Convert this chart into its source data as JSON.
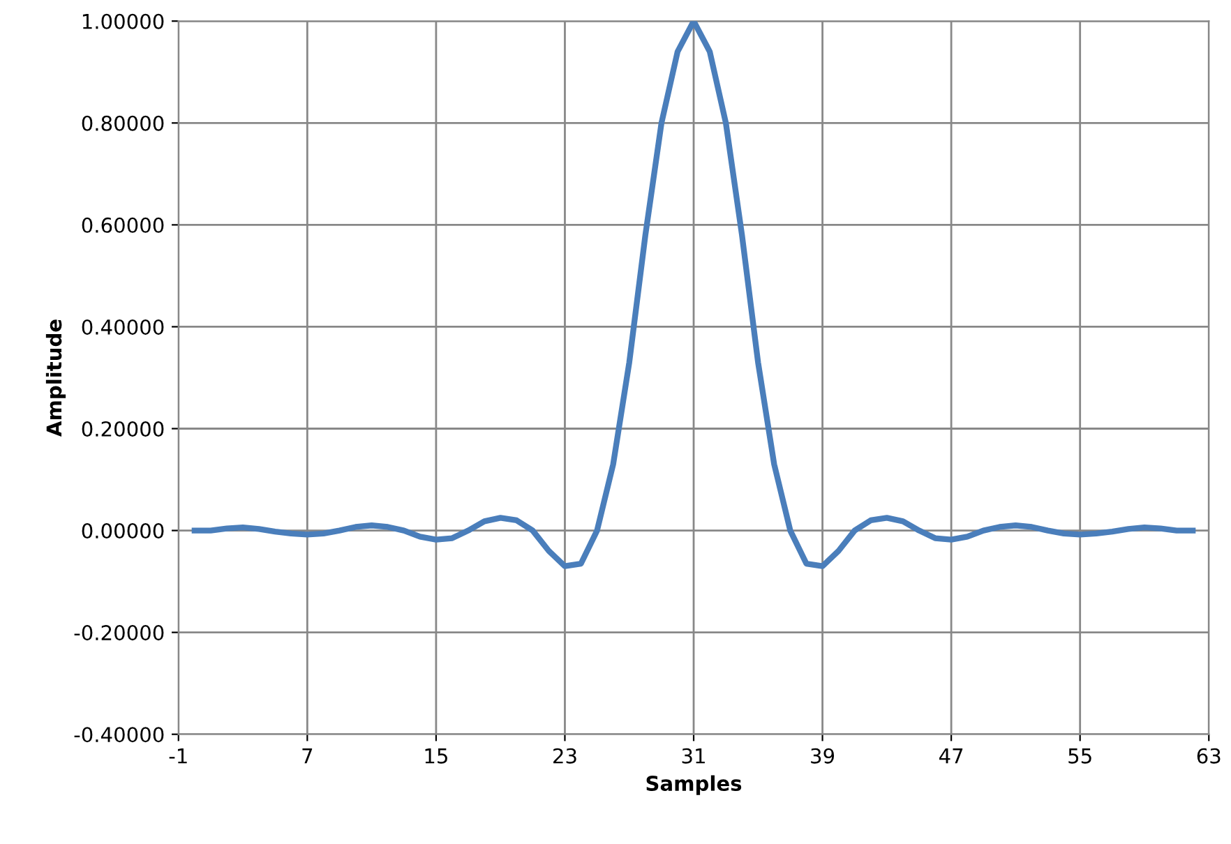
{
  "chart_data": {
    "type": "line",
    "xlabel": "Samples",
    "ylabel": "Amplitude",
    "x": [
      0,
      1,
      2,
      3,
      4,
      5,
      6,
      7,
      8,
      9,
      10,
      11,
      12,
      13,
      14,
      15,
      16,
      17,
      18,
      19,
      20,
      21,
      22,
      23,
      24,
      25,
      26,
      27,
      28,
      29,
      30,
      31,
      32,
      33,
      34,
      35,
      36,
      37,
      38,
      39,
      40,
      41,
      42,
      43,
      44,
      45,
      46,
      47,
      48,
      49,
      50,
      51,
      52,
      53,
      54,
      55,
      56,
      57,
      58,
      59,
      60,
      61,
      62
    ],
    "series": [
      {
        "color": "#4a7ebb",
        "values": [
          0,
          0,
          0.004,
          0.006,
          0.003,
          -0.002,
          -0.006,
          -0.008,
          -0.006,
          0,
          0.007,
          0.01,
          0.007,
          0,
          -0.012,
          -0.018,
          -0.015,
          0,
          0.018,
          0.025,
          0.02,
          0,
          -0.04,
          -0.07,
          -0.065,
          0,
          0.13,
          0.33,
          0.58,
          0.8,
          0.94,
          1.0,
          0.94,
          0.8,
          0.58,
          0.33,
          0.13,
          0,
          -0.065,
          -0.07,
          -0.04,
          0,
          0.02,
          0.025,
          0.018,
          0,
          -0.015,
          -0.018,
          -0.012,
          0,
          0.007,
          0.01,
          0.007,
          0,
          -0.006,
          -0.008,
          -0.006,
          -0.002,
          0.003,
          0.006,
          0.004,
          0,
          0
        ]
      }
    ],
    "xlim": [
      -1,
      63
    ],
    "xticks": [
      -1,
      7,
      15,
      23,
      31,
      39,
      47,
      55,
      63
    ],
    "ylim": [
      -0.4,
      1.0
    ],
    "yticks": [
      {
        "value": -0.4,
        "label": "-0.40000"
      },
      {
        "value": -0.2,
        "label": "-0.20000"
      },
      {
        "value": 0,
        "label": "0.00000"
      },
      {
        "value": 0.2,
        "label": "0.20000"
      },
      {
        "value": 0.4,
        "label": "0.40000"
      },
      {
        "value": 0.6,
        "label": "0.60000"
      },
      {
        "value": 0.8,
        "label": "0.80000"
      },
      {
        "value": 1.0,
        "label": "1.00000"
      }
    ],
    "grid": true,
    "marker": "none",
    "line_style": "solid"
  }
}
